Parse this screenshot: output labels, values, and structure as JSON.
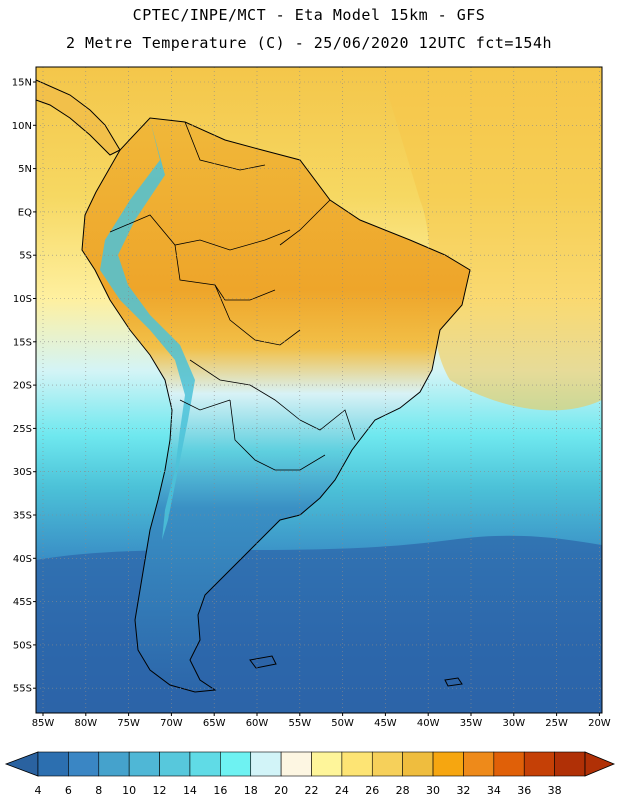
{
  "header": {
    "title": "CPTEC/INPE/MCT -  Eta Model 15km - GFS",
    "subtitle": "2 Metre Temperature (C) - 25/06/2020 12UTC fct=154h"
  },
  "map": {
    "lat_labels": [
      "15N",
      "10N",
      "5N",
      "EQ",
      "5S",
      "10S",
      "15S",
      "20S",
      "25S",
      "30S",
      "35S",
      "40S",
      "45S",
      "50S",
      "55S"
    ],
    "lon_labels": [
      "85W",
      "80W",
      "75W",
      "70W",
      "65W",
      "60W",
      "55W",
      "50W",
      "45W",
      "40W",
      "35W",
      "30W",
      "25W",
      "20W"
    ]
  },
  "colorbar": {
    "labels": [
      "4",
      "6",
      "8",
      "10",
      "12",
      "14",
      "16",
      "18",
      "20",
      "22",
      "24",
      "26",
      "28",
      "30",
      "32",
      "34",
      "36",
      "38"
    ],
    "colors": [
      "#2c6fb0",
      "#3a86c4",
      "#45a2cc",
      "#4fb7d6",
      "#57c8dc",
      "#60dbe6",
      "#6ef2f2",
      "#d2f4f8",
      "#fdf6e2",
      "#fef59a",
      "#fde474",
      "#f6d05a",
      "#efbd3e",
      "#f6a610",
      "#ee8a1a",
      "#e06008",
      "#c54006",
      "#b03006"
    ],
    "end_low": "#2a62a0",
    "end_high": "#b03006"
  }
}
